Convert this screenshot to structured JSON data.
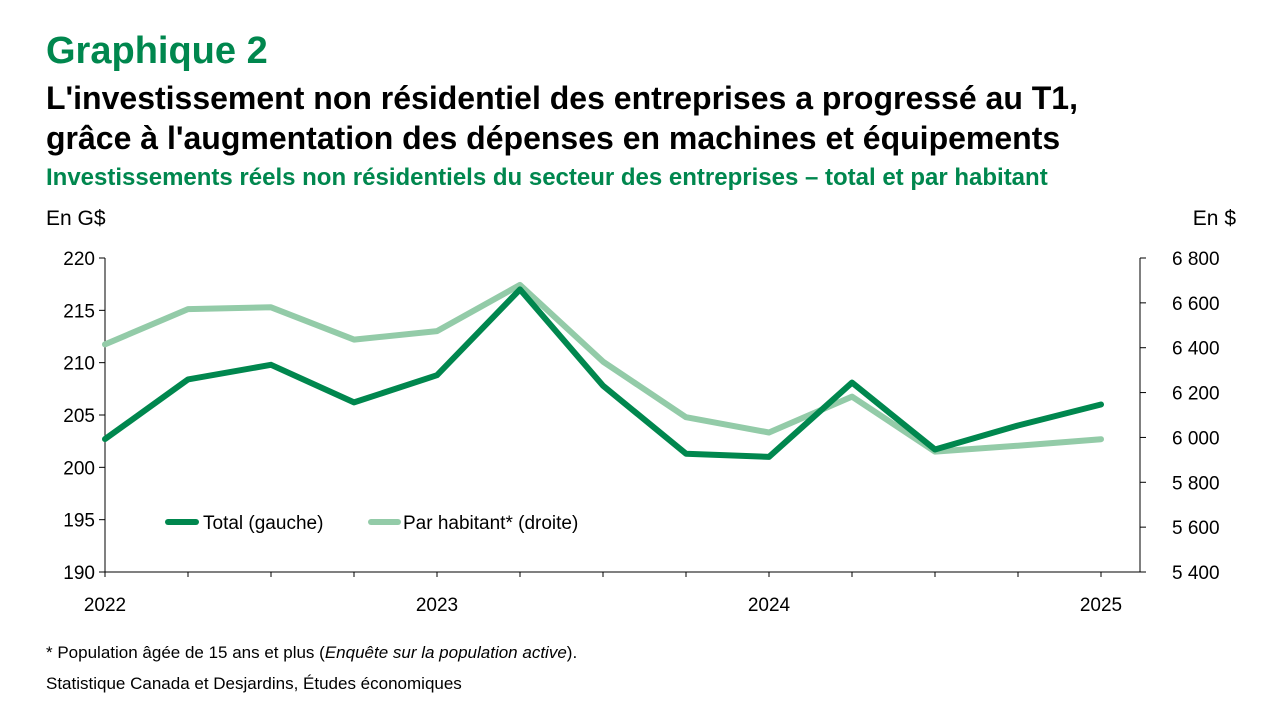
{
  "header": {
    "kicker": "Graphique 2",
    "title_line1": "L'investissement non résidentiel des entreprises a progressé au T1,",
    "title_line2": "grâce à l'augmentation des dépenses en machines et équipements",
    "subtitle": "Investissements réels non résidentiels du secteur des entreprises – total et par habitant"
  },
  "footer": {
    "note_prefix": "* Population âgée de 15 ans et plus (",
    "note_italic": "Enquête sur la population active",
    "note_suffix": ").",
    "source": "Statistique Canada et Desjardins, Études économiques"
  },
  "colors": {
    "accent": "#00874E",
    "total": "#00874E",
    "per_capita": "#93CBA8"
  },
  "chart_data": {
    "type": "line",
    "x": [
      "2022-Q1",
      "2022-Q2",
      "2022-Q3",
      "2022-Q4",
      "2023-Q1",
      "2023-Q2",
      "2023-Q3",
      "2023-Q4",
      "2024-Q1",
      "2024-Q2",
      "2024-Q3",
      "2024-Q4",
      "2025-Q1"
    ],
    "x_tick_labels": [
      {
        "label": "2022",
        "at": "2022-Q1"
      },
      {
        "label": "2023",
        "at": "2023-Q1"
      },
      {
        "label": "2024",
        "at": "2024-Q1"
      },
      {
        "label": "2025",
        "at": "2025-Q1"
      }
    ],
    "y_left": {
      "unit_label": "En G$",
      "range": [
        190,
        220
      ],
      "ticks": [
        190,
        195,
        200,
        205,
        210,
        215,
        220
      ]
    },
    "y_right": {
      "unit_label": "En $",
      "range": [
        5400,
        6800
      ],
      "ticks": [
        5400,
        5600,
        5800,
        6000,
        6200,
        6400,
        6600,
        6800
      ],
      "tick_labels": [
        "5 400",
        "5 600",
        "5 800",
        "6 000",
        "6 200",
        "6 400",
        "6 600",
        "6 800"
      ]
    },
    "series": [
      {
        "name": "Total (gauche)",
        "axis": "left",
        "values": [
          202.7,
          208.4,
          209.8,
          206.2,
          208.8,
          217.0,
          207.8,
          201.3,
          201.0,
          208.1,
          201.7,
          204.0,
          206.0
        ]
      },
      {
        "name": "Par habitant* (droite)",
        "axis": "right",
        "values": [
          6415,
          6572,
          6580,
          6436,
          6474,
          6680,
          6338,
          6090,
          6022,
          6182,
          5937,
          5963,
          5992
        ]
      }
    ],
    "grid": false,
    "legend": "inside-bottom-left"
  }
}
